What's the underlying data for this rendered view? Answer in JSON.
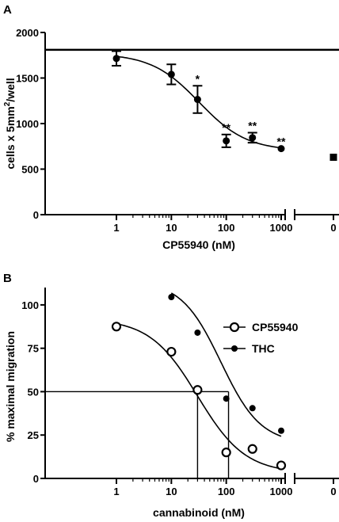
{
  "chart_data": [
    {
      "panel_label": "A",
      "type": "scatter",
      "xscale": "log",
      "xlabel": "CP55940 (nM)",
      "ylabel": "cells x 5mm²/well",
      "ylabel_parts": {
        "main": "cells x 5mm",
        "sup": "2",
        "tail": "/well"
      },
      "ylim": [
        0,
        2000
      ],
      "yticks": [
        "0",
        "500",
        "1000",
        "1500",
        "2000"
      ],
      "xticks": [
        "1",
        "10",
        "100",
        "1000"
      ],
      "zero_tick": "0",
      "control_line_y": 1810,
      "series": [
        {
          "marker": "filled-circle",
          "x": [
            1,
            10,
            30,
            100,
            300,
            1000
          ],
          "y": [
            1715,
            1540,
            1265,
            810,
            845,
            725
          ],
          "err": [
            80,
            110,
            150,
            70,
            55,
            0
          ],
          "annotations": [
            "",
            "",
            "*",
            "**",
            "**",
            "**"
          ]
        }
      ],
      "fit": {
        "top": 1770,
        "bottom": 700,
        "ec50": 32,
        "hill": 1.0
      },
      "zero_point": {
        "marker": "filled-square",
        "y": 630
      }
    },
    {
      "panel_label": "B",
      "type": "scatter",
      "xscale": "log",
      "xlabel": "cannabinoid (nM)",
      "ylabel": "% maximal migration",
      "ylim": [
        0,
        110
      ],
      "yticks": [
        "0",
        "25",
        "50",
        "75",
        "100"
      ],
      "xticks": [
        "1",
        "10",
        "100",
        "1000"
      ],
      "zero_tick": "0",
      "series": [
        {
          "name": "CP55940",
          "marker": "open-circle",
          "x": [
            1,
            10,
            30,
            100,
            300,
            1000
          ],
          "y": [
            87.5,
            73,
            51,
            15,
            17,
            7.5
          ],
          "fit": {
            "top": 92,
            "bottom": 3,
            "ec50": 30,
            "hill": 1.0
          }
        },
        {
          "name": "THC",
          "marker": "filled-circle",
          "x": [
            10,
            30,
            100,
            300,
            1000
          ],
          "y": [
            104.5,
            84,
            46,
            40.5,
            27.5
          ],
          "fit": {
            "top": 114,
            "bottom": 20,
            "ec50": 80,
            "hill": 1.2
          }
        }
      ],
      "reference_lines": {
        "y": 50,
        "x": [
          30,
          110
        ]
      },
      "legend_position": "right"
    }
  ]
}
